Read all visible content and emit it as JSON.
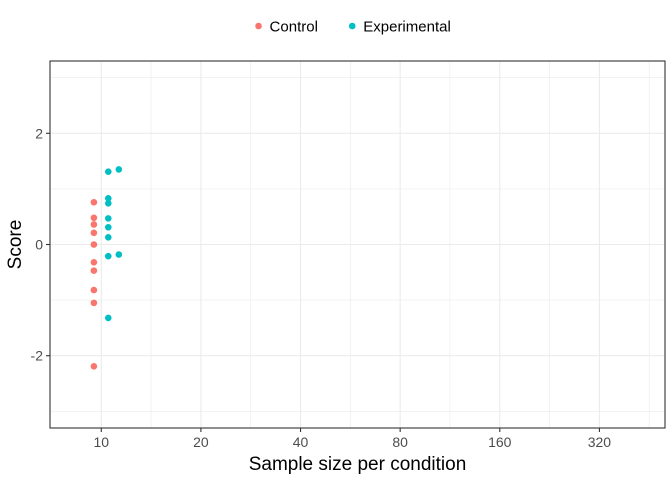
{
  "chart_data": {
    "type": "scatter",
    "title": "",
    "xlabel": "Sample size per condition",
    "ylabel": "Score",
    "x_scale": "log2",
    "x_ticks": [
      10,
      20,
      40,
      80,
      160,
      320
    ],
    "x_tick_labels": [
      "10",
      "20",
      "40",
      "80",
      "160",
      "320"
    ],
    "xlim": [
      7.0,
      505
    ],
    "y_ticks": [
      -2,
      0,
      2
    ],
    "y_tick_labels": [
      "-2",
      "0",
      "2"
    ],
    "ylim": [
      -3.3,
      3.3
    ],
    "grid": true,
    "legend_position": "top",
    "series": [
      {
        "name": "Control",
        "color": "#F8766D",
        "points": [
          {
            "x": 9.5,
            "y": 0.76
          },
          {
            "x": 9.5,
            "y": 0.48
          },
          {
            "x": 9.5,
            "y": 0.36
          },
          {
            "x": 9.5,
            "y": 0.21
          },
          {
            "x": 9.5,
            "y": 0.0
          },
          {
            "x": 9.5,
            "y": -0.32
          },
          {
            "x": 9.5,
            "y": -0.47
          },
          {
            "x": 9.5,
            "y": -0.82
          },
          {
            "x": 9.5,
            "y": -1.05
          },
          {
            "x": 9.5,
            "y": -2.19
          }
        ]
      },
      {
        "name": "Experimental",
        "color": "#00BFC4",
        "points": [
          {
            "x": 11.3,
            "y": 1.35
          },
          {
            "x": 10.5,
            "y": 1.31
          },
          {
            "x": 10.5,
            "y": 0.83
          },
          {
            "x": 10.5,
            "y": 0.74
          },
          {
            "x": 10.5,
            "y": 0.47
          },
          {
            "x": 10.5,
            "y": 0.31
          },
          {
            "x": 10.5,
            "y": 0.13
          },
          {
            "x": 11.3,
            "y": -0.18
          },
          {
            "x": 10.5,
            "y": -0.21
          },
          {
            "x": 10.5,
            "y": -1.32
          }
        ]
      }
    ]
  }
}
